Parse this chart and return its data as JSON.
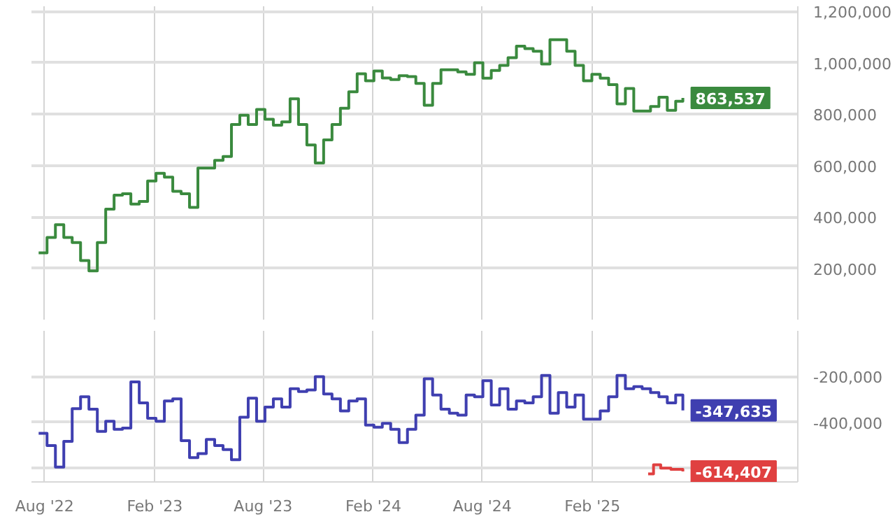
{
  "chart_data": [
    {
      "type": "step",
      "x": [
        "2022-07-22",
        "2022-08-05",
        "2022-08-19",
        "2022-09-02",
        "2022-09-16",
        "2022-09-30",
        "2022-10-14",
        "2022-10-28",
        "2022-11-11",
        "2022-11-25",
        "2022-12-09",
        "2022-12-23",
        "2023-01-06",
        "2023-01-20",
        "2023-02-03",
        "2023-02-17",
        "2023-03-03",
        "2023-03-17",
        "2023-03-31",
        "2023-04-14",
        "2023-04-28",
        "2023-05-12",
        "2023-05-26",
        "2023-06-09",
        "2023-06-23",
        "2023-07-07",
        "2023-07-21",
        "2023-08-04",
        "2023-08-18",
        "2023-09-01",
        "2023-09-15",
        "2023-09-29",
        "2023-10-13",
        "2023-10-27",
        "2023-11-10",
        "2023-11-24",
        "2023-12-08",
        "2023-12-22",
        "2024-01-05",
        "2024-01-19",
        "2024-02-02",
        "2024-02-16",
        "2024-03-01",
        "2024-03-15",
        "2024-03-29",
        "2024-04-12",
        "2024-04-26",
        "2024-05-10",
        "2024-05-24",
        "2024-06-07",
        "2024-06-21",
        "2024-07-05",
        "2024-07-19",
        "2024-08-02",
        "2024-08-16",
        "2024-08-30",
        "2024-09-13",
        "2024-09-27",
        "2024-10-11",
        "2024-10-25",
        "2024-11-08",
        "2024-11-22",
        "2024-12-06",
        "2024-12-20",
        "2025-01-03",
        "2025-01-17",
        "2025-01-31",
        "2025-02-14",
        "2025-02-28",
        "2025-03-14",
        "2025-03-28",
        "2025-04-11",
        "2025-04-25",
        "2025-05-09",
        "2025-05-23",
        "2025-06-06",
        "2025-06-20",
        "2025-07-02"
      ],
      "series": [
        {
          "color": "#3a8a3e",
          "values": [
            260000,
            320000,
            370000,
            320000,
            300000,
            230000,
            190000,
            300000,
            430000,
            485000,
            490000,
            450000,
            460000,
            540000,
            570000,
            555000,
            500000,
            490000,
            437000,
            590000,
            590000,
            620000,
            635000,
            760000,
            796000,
            760000,
            818000,
            780000,
            757000,
            770000,
            860000,
            760000,
            680000,
            610000,
            700000,
            760000,
            823000,
            887000,
            957000,
            930000,
            968000,
            941000,
            935000,
            950000,
            946000,
            920000,
            835000,
            920000,
            973000,
            973000,
            965000,
            955000,
            1000000,
            940000,
            970000,
            990000,
            1020000,
            1065000,
            1055000,
            1045000,
            995000,
            1090000,
            1090000,
            1045000,
            990000,
            930000,
            955000,
            940000,
            915000,
            840000,
            900000,
            812000,
            812000,
            830000,
            866000,
            815000,
            850000,
            863537
          ],
          "value_labels": [
            null,
            null,
            null,
            null,
            null,
            null,
            null,
            null,
            null,
            null,
            null,
            null,
            null,
            null,
            null,
            null,
            null,
            null,
            null,
            null,
            null,
            null,
            null,
            null,
            null,
            null,
            null,
            null,
            null,
            null,
            null,
            null,
            null,
            null,
            null,
            null,
            null,
            null,
            null,
            null,
            null,
            null,
            null,
            null,
            null,
            null,
            null,
            null,
            null,
            null,
            null,
            null,
            null,
            null,
            null,
            null,
            null,
            null,
            null,
            null,
            null,
            null,
            null,
            null,
            null,
            null,
            null,
            null,
            null,
            null,
            null,
            null,
            null,
            null,
            null,
            null,
            null,
            "863,537"
          ]
        }
      ],
      "xlim": [
        "2022-07-10",
        "2026-01-10"
      ],
      "xticks": [
        {
          "value": "2022-08-01",
          "label": null
        },
        {
          "value": "2023-02-01",
          "label": null
        },
        {
          "value": "2023-08-01",
          "label": null
        },
        {
          "value": "2024-02-01",
          "label": null
        },
        {
          "value": "2024-08-01",
          "label": null
        },
        {
          "value": "2025-02-01",
          "label": null
        }
      ],
      "ylim": [
        0,
        1220000
      ],
      "yticks": [
        {
          "value": 200000,
          "label": "200,000"
        },
        {
          "value": 400000,
          "label": "400,000"
        },
        {
          "value": 600000,
          "label": "600,000"
        },
        {
          "value": 800000,
          "label": "800,000"
        },
        {
          "value": 1000000,
          "label": "1,000,000"
        },
        {
          "value": 1200000,
          "label": "1,200,000"
        }
      ],
      "grid": true,
      "tick_labels": "y"
    },
    {
      "type": "step",
      "x": [
        "2022-07-22",
        "2022-08-05",
        "2022-08-19",
        "2022-09-02",
        "2022-09-16",
        "2022-09-30",
        "2022-10-14",
        "2022-10-28",
        "2022-11-11",
        "2022-11-25",
        "2022-12-09",
        "2022-12-23",
        "2023-01-06",
        "2023-01-20",
        "2023-02-03",
        "2023-02-17",
        "2023-03-03",
        "2023-03-17",
        "2023-03-31",
        "2023-04-14",
        "2023-04-28",
        "2023-05-12",
        "2023-05-26",
        "2023-06-09",
        "2023-06-23",
        "2023-07-07",
        "2023-07-21",
        "2023-08-04",
        "2023-08-18",
        "2023-09-01",
        "2023-09-15",
        "2023-09-29",
        "2023-10-13",
        "2023-10-27",
        "2023-11-10",
        "2023-11-24",
        "2023-12-08",
        "2023-12-22",
        "2024-01-05",
        "2024-01-19",
        "2024-02-02",
        "2024-02-16",
        "2024-03-01",
        "2024-03-15",
        "2024-03-29",
        "2024-04-12",
        "2024-04-26",
        "2024-05-10",
        "2024-05-24",
        "2024-06-07",
        "2024-06-21",
        "2024-07-05",
        "2024-07-19",
        "2024-08-02",
        "2024-08-16",
        "2024-08-30",
        "2024-09-13",
        "2024-09-27",
        "2024-10-11",
        "2024-10-25",
        "2024-11-08",
        "2024-11-22",
        "2024-12-06",
        "2024-12-20",
        "2025-01-03",
        "2025-01-17",
        "2025-01-31",
        "2025-02-14",
        "2025-02-28",
        "2025-03-14",
        "2025-03-28",
        "2025-04-11",
        "2025-04-25",
        "2025-05-09",
        "2025-05-23",
        "2025-06-06",
        "2025-06-20",
        "2025-07-02"
      ],
      "series": [
        {
          "color": "#3f3fb0",
          "values": [
            -448000,
            -501000,
            -595000,
            -483000,
            -340000,
            -288000,
            -342000,
            -439000,
            -395000,
            -430000,
            -425000,
            -223000,
            -315000,
            -382000,
            -395000,
            -306000,
            -297000,
            -480000,
            -554000,
            -536000,
            -474000,
            -501000,
            -519000,
            -563000,
            -377000,
            -294000,
            -395000,
            -333000,
            -297000,
            -333000,
            -253000,
            -265000,
            -258000,
            -200000,
            -276000,
            -297000,
            -350000,
            -306000,
            -297000,
            -412000,
            -421000,
            -404000,
            -430000,
            -488000,
            -430000,
            -368000,
            -209000,
            -280000,
            -342000,
            -360000,
            -368000,
            -280000,
            -288000,
            -218000,
            -324000,
            -253000,
            -342000,
            -306000,
            -315000,
            -288000,
            -195000,
            -360000,
            -270000,
            -333000,
            -280000,
            -386000,
            -386000,
            -350000,
            -288000,
            -195000,
            -253000,
            -244000,
            -253000,
            -270000,
            -288000,
            -315000,
            -280000,
            -347635
          ],
          "value_labels": [
            null,
            null,
            null,
            null,
            null,
            null,
            null,
            null,
            null,
            null,
            null,
            null,
            null,
            null,
            null,
            null,
            null,
            null,
            null,
            null,
            null,
            null,
            null,
            null,
            null,
            null,
            null,
            null,
            null,
            null,
            null,
            null,
            null,
            null,
            null,
            null,
            null,
            null,
            null,
            null,
            null,
            null,
            null,
            null,
            null,
            null,
            null,
            null,
            null,
            null,
            null,
            null,
            null,
            null,
            null,
            null,
            null,
            null,
            null,
            null,
            null,
            null,
            null,
            null,
            null,
            null,
            null,
            null,
            null,
            null,
            null,
            null,
            null,
            null,
            null,
            null,
            null,
            "-347,635"
          ]
        },
        {
          "color": "#e04040",
          "x": [
            "2025-05-05",
            "2025-05-14",
            "2025-05-26",
            "2025-06-12",
            "2025-07-02"
          ],
          "values": [
            -625000,
            -585000,
            -600000,
            -605000,
            -614407
          ],
          "value_labels": [
            null,
            null,
            null,
            null,
            "-614,407"
          ]
        }
      ],
      "xlim": [
        "2022-07-10",
        "2026-01-10"
      ],
      "xticks": [
        {
          "value": "2022-08-01",
          "label": "Aug '22"
        },
        {
          "value": "2023-02-01",
          "label": "Feb '23"
        },
        {
          "value": "2023-08-01",
          "label": "Aug '23"
        },
        {
          "value": "2024-02-01",
          "label": "Feb '24"
        },
        {
          "value": "2024-08-01",
          "label": "Aug '24"
        },
        {
          "value": "2025-02-01",
          "label": "Feb '25"
        }
      ],
      "ylim": [
        -660000,
        0
      ],
      "yticks": [
        {
          "value": -200000,
          "label": "-200,000"
        },
        {
          "value": -400000,
          "label": "-400,000"
        },
        {
          "value": -600000,
          "label": null
        }
      ],
      "grid": true
    }
  ]
}
